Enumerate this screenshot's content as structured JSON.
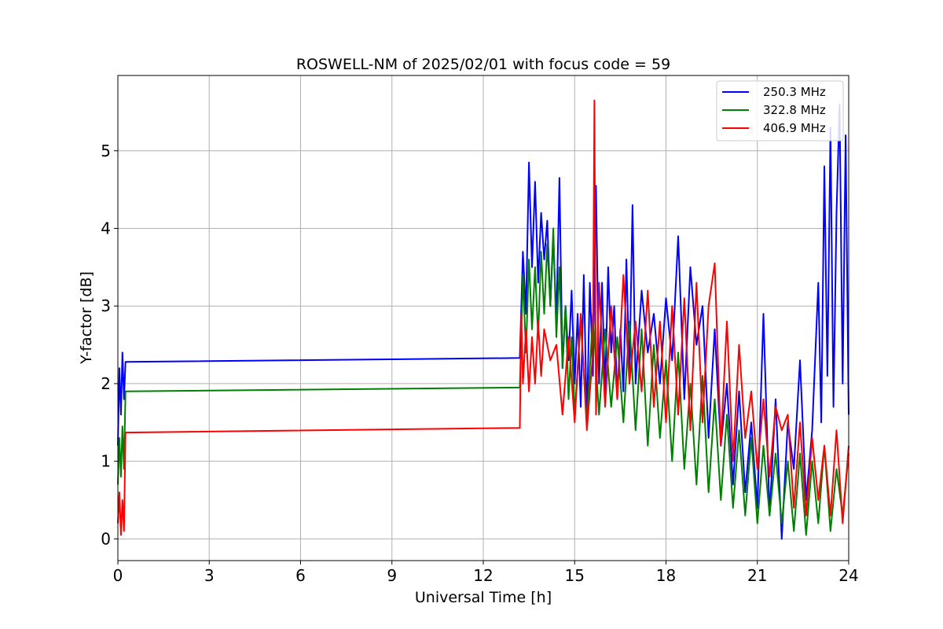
{
  "chart_data": {
    "type": "line",
    "title": "ROSWELL-NM of 2025/02/01 with focus code = 59",
    "xlabel": "Universal Time [h]",
    "ylabel": "Y-factor [dB]",
    "xlim": [
      0,
      24
    ],
    "ylim": [
      -0.28,
      5.97
    ],
    "xticks": [
      0,
      3,
      6,
      9,
      12,
      15,
      18,
      21,
      24
    ],
    "yticks": [
      0,
      1,
      2,
      3,
      4,
      5
    ],
    "grid": true,
    "legend_position": "top-right",
    "series": [
      {
        "name": "250.3 MHz",
        "color": "#0000ff",
        "x": [
          0,
          0.05,
          0.1,
          0.15,
          0.2,
          0.25,
          13.2,
          13.3,
          13.4,
          13.5,
          13.6,
          13.7,
          13.8,
          13.9,
          14.0,
          14.1,
          14.2,
          14.3,
          14.4,
          14.5,
          14.6,
          14.7,
          14.8,
          14.9,
          15.0,
          15.1,
          15.2,
          15.3,
          15.4,
          15.5,
          15.6,
          15.7,
          15.8,
          15.9,
          16.0,
          16.1,
          16.2,
          16.3,
          16.4,
          16.5,
          16.6,
          16.7,
          16.8,
          16.9,
          17.0,
          17.2,
          17.4,
          17.6,
          17.8,
          18.0,
          18.2,
          18.4,
          18.6,
          18.8,
          19.0,
          19.2,
          19.4,
          19.6,
          19.8,
          20.0,
          20.2,
          20.4,
          20.6,
          20.8,
          21.0,
          21.2,
          21.4,
          21.6,
          21.8,
          22.0,
          22.2,
          22.4,
          22.6,
          22.8,
          23.0,
          23.1,
          23.2,
          23.3,
          23.4,
          23.5,
          23.6,
          23.7,
          23.8,
          23.9,
          24.0
        ],
        "values": [
          1.2,
          2.2,
          1.6,
          2.4,
          1.8,
          2.28,
          2.33,
          3.7,
          2.9,
          4.85,
          3.5,
          4.6,
          3.3,
          4.2,
          3.6,
          4.1,
          3.0,
          3.9,
          2.8,
          4.65,
          2.2,
          3.0,
          2.3,
          3.2,
          2.0,
          2.9,
          1.7,
          3.4,
          1.5,
          3.3,
          2.1,
          4.55,
          2.0,
          3.3,
          1.9,
          3.5,
          2.4,
          3.0,
          1.8,
          2.7,
          1.9,
          3.6,
          2.1,
          4.3,
          2.0,
          3.2,
          2.4,
          2.9,
          2.0,
          3.1,
          2.3,
          3.9,
          1.8,
          3.5,
          2.5,
          3.0,
          1.3,
          2.7,
          1.2,
          2.0,
          0.7,
          1.9,
          0.6,
          1.5,
          0.4,
          2.9,
          0.3,
          1.8,
          0.0,
          1.5,
          0.9,
          2.3,
          0.5,
          1.4,
          3.3,
          1.5,
          4.8,
          2.1,
          5.3,
          1.7,
          4.2,
          5.6,
          2.0,
          5.2,
          1.6
        ]
      },
      {
        "name": "322.8 MHz",
        "color": "#008000",
        "x": [
          0,
          0.05,
          0.1,
          0.15,
          0.2,
          0.25,
          13.2,
          13.3,
          13.4,
          13.5,
          13.6,
          13.7,
          13.8,
          13.9,
          14.0,
          14.1,
          14.2,
          14.3,
          14.4,
          14.5,
          14.6,
          14.7,
          14.8,
          14.9,
          15.0,
          15.2,
          15.4,
          15.6,
          15.8,
          16.0,
          16.2,
          16.4,
          16.6,
          16.8,
          17.0,
          17.2,
          17.4,
          17.6,
          17.8,
          18.0,
          18.2,
          18.4,
          18.6,
          18.8,
          19.0,
          19.2,
          19.4,
          19.6,
          19.8,
          20.0,
          20.2,
          20.4,
          20.6,
          20.8,
          21.0,
          21.2,
          21.4,
          21.6,
          21.8,
          22.0,
          22.2,
          22.4,
          22.6,
          22.8,
          23.0,
          23.2,
          23.4,
          23.6,
          23.8,
          24.0
        ],
        "values": [
          0.7,
          1.3,
          0.8,
          1.45,
          0.9,
          1.9,
          1.95,
          3.4,
          2.4,
          3.6,
          2.7,
          3.5,
          2.6,
          3.7,
          2.9,
          3.8,
          3.0,
          4.0,
          2.6,
          3.5,
          2.2,
          3.0,
          1.8,
          2.6,
          1.6,
          2.8,
          1.5,
          2.9,
          1.6,
          2.7,
          1.7,
          2.6,
          1.5,
          2.8,
          1.4,
          2.7,
          1.2,
          2.5,
          1.3,
          2.3,
          1.0,
          2.4,
          0.9,
          2.0,
          0.7,
          2.1,
          0.6,
          1.8,
          0.5,
          1.6,
          0.4,
          1.4,
          0.3,
          1.3,
          0.2,
          1.2,
          0.3,
          1.1,
          0.2,
          1.0,
          0.1,
          1.1,
          0.05,
          1.0,
          0.2,
          1.2,
          0.1,
          0.9,
          0.3,
          1.1
        ]
      },
      {
        "name": "406.9 MHz",
        "color": "#ff0000",
        "x": [
          0,
          0.05,
          0.1,
          0.15,
          0.2,
          0.25,
          13.2,
          13.25,
          13.3,
          13.4,
          13.5,
          13.6,
          13.7,
          13.8,
          13.9,
          14.0,
          14.2,
          14.4,
          14.6,
          14.8,
          15.0,
          15.2,
          15.4,
          15.6,
          15.65,
          15.7,
          15.8,
          16.0,
          16.2,
          16.4,
          16.6,
          16.8,
          17.0,
          17.2,
          17.4,
          17.6,
          17.8,
          18.0,
          18.2,
          18.4,
          18.6,
          18.8,
          19.0,
          19.2,
          19.4,
          19.6,
          19.8,
          20.0,
          20.2,
          20.4,
          20.6,
          20.8,
          21.0,
          21.2,
          21.4,
          21.6,
          21.8,
          22.0,
          22.2,
          22.4,
          22.6,
          22.8,
          23.0,
          23.2,
          23.4,
          23.6,
          23.8,
          24.0
        ],
        "values": [
          0.2,
          0.6,
          0.05,
          0.5,
          0.1,
          1.37,
          1.43,
          2.9,
          2.0,
          2.7,
          1.9,
          2.6,
          2.0,
          2.8,
          2.1,
          2.7,
          2.3,
          2.5,
          1.6,
          2.6,
          1.5,
          2.9,
          1.4,
          2.4,
          5.65,
          1.6,
          3.3,
          1.7,
          3.0,
          1.8,
          3.4,
          2.0,
          2.8,
          1.9,
          3.2,
          1.7,
          2.8,
          1.5,
          3.0,
          1.6,
          3.1,
          1.4,
          3.3,
          1.5,
          3.0,
          3.55,
          1.2,
          2.8,
          1.0,
          2.5,
          1.3,
          1.9,
          0.9,
          1.8,
          0.8,
          1.7,
          1.4,
          1.6,
          0.4,
          1.5,
          0.3,
          1.3,
          0.5,
          1.2,
          0.3,
          1.4,
          0.2,
          1.2
        ]
      }
    ]
  }
}
